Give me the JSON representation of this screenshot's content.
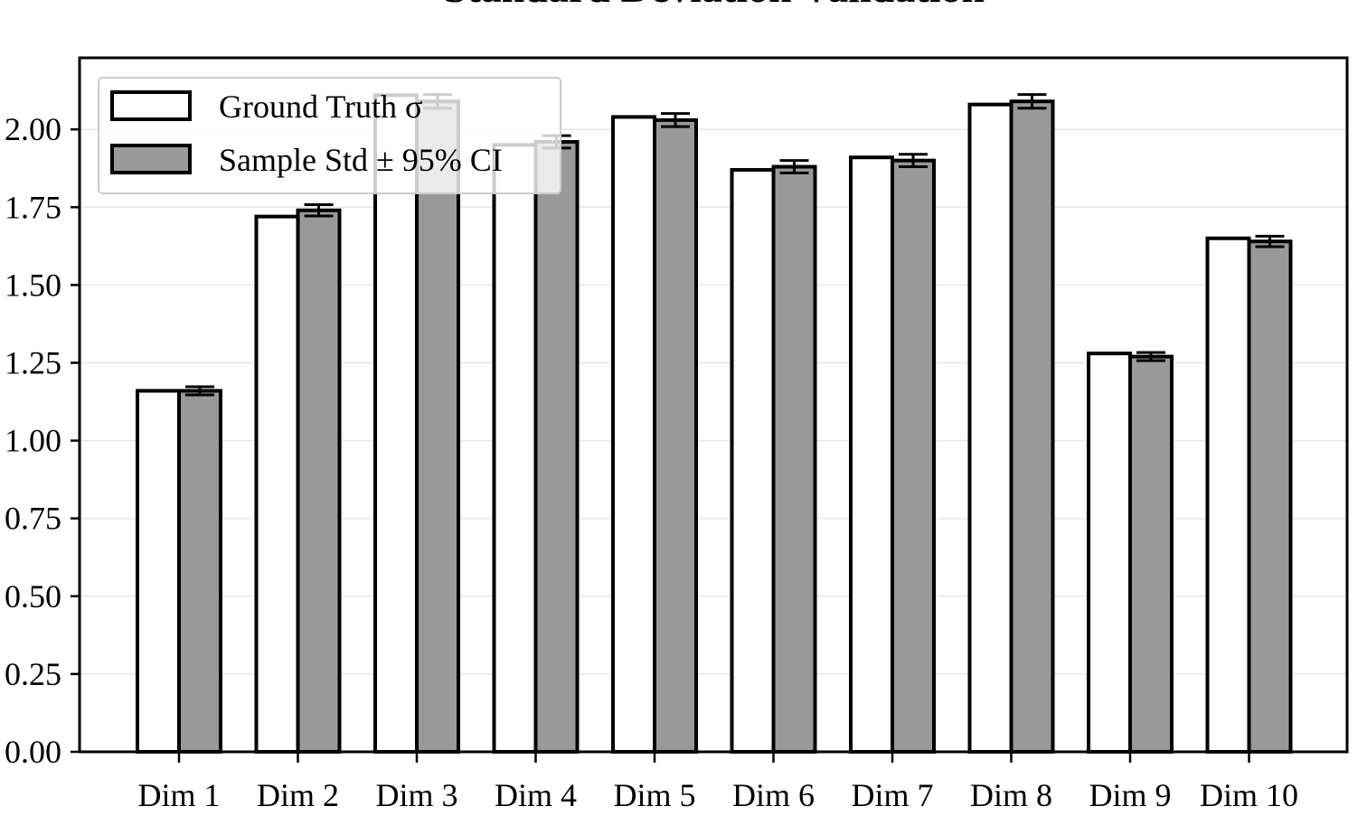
{
  "chart_data": {
    "type": "bar",
    "title": "Standard Deviation Validation",
    "xlabel": "",
    "ylabel": "",
    "categories": [
      "Dim 1",
      "Dim 2",
      "Dim 3",
      "Dim 4",
      "Dim 5",
      "Dim 6",
      "Dim 7",
      "Dim 8",
      "Dim 9",
      "Dim 10"
    ],
    "series": [
      {
        "name": "Ground Truth σ",
        "values": [
          1.16,
          1.72,
          2.11,
          1.95,
          2.04,
          1.87,
          1.91,
          2.08,
          1.28,
          1.65
        ],
        "fill": "#ffffff"
      },
      {
        "name": "Sample Std ± 95% CI",
        "values": [
          1.16,
          1.74,
          2.09,
          1.96,
          2.03,
          1.88,
          1.9,
          2.09,
          1.27,
          1.64
        ],
        "ci": [
          0.013,
          0.018,
          0.022,
          0.02,
          0.021,
          0.02,
          0.02,
          0.022,
          0.013,
          0.017
        ],
        "fill": "#999999"
      }
    ],
    "ylim": [
      0,
      2.23
    ],
    "yticks": [
      0.0,
      0.25,
      0.5,
      0.75,
      1.0,
      1.25,
      1.5,
      1.75,
      2.0
    ],
    "ytick_labels": [
      "0.00",
      "0.25",
      "0.50",
      "0.75",
      "1.00",
      "1.25",
      "1.50",
      "1.75",
      "2.00"
    ],
    "grid": "horizontal",
    "legend_position": "top-left",
    "colors": {
      "edge": "#000000",
      "grid": "#e6e6e6"
    }
  }
}
